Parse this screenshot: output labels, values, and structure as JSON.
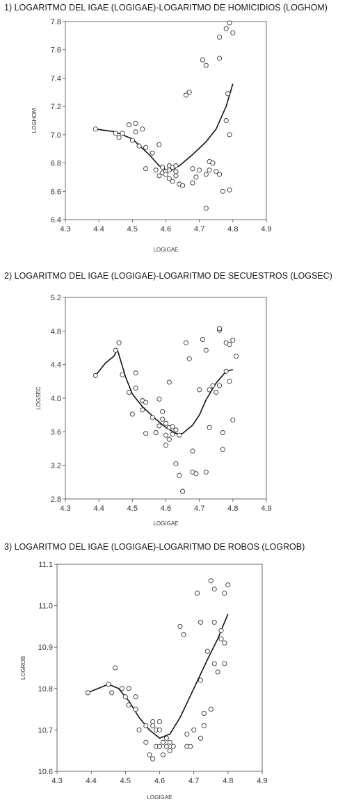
{
  "chart_data": [
    {
      "type": "scatter",
      "title": "1) LOGARITMO DEL IGAE (LOGIGAE)-LOGARITMO DE HOMICIDIOS (LOGHOM)",
      "xlabel": "LOGIGAE",
      "ylabel": "LOGHOM",
      "xlim": [
        4.3,
        4.9
      ],
      "ylim": [
        6.4,
        7.8
      ],
      "xticks": [
        "4.3",
        "4.4",
        "4.5",
        "4.6",
        "4.7",
        "4.8",
        "4.9"
      ],
      "yticks": [
        "6.4",
        "6.6",
        "6.8",
        "7.0",
        "7.2",
        "7.4",
        "7.6",
        "7.8"
      ],
      "grid": false,
      "points": [
        [
          4.39,
          7.04
        ],
        [
          4.45,
          7.01
        ],
        [
          4.46,
          6.98
        ],
        [
          4.47,
          7.01
        ],
        [
          4.49,
          7.07
        ],
        [
          4.5,
          6.96
        ],
        [
          4.51,
          7.08
        ],
        [
          4.51,
          7.02
        ],
        [
          4.52,
          6.92
        ],
        [
          4.53,
          7.04
        ],
        [
          4.54,
          6.91
        ],
        [
          4.54,
          6.76
        ],
        [
          4.56,
          6.87
        ],
        [
          4.57,
          6.75
        ],
        [
          4.58,
          6.93
        ],
        [
          4.58,
          6.71
        ],
        [
          4.59,
          6.77
        ],
        [
          4.59,
          6.73
        ],
        [
          4.6,
          6.74
        ],
        [
          4.6,
          6.72
        ],
        [
          4.61,
          6.78
        ],
        [
          4.61,
          6.75
        ],
        [
          4.61,
          6.69
        ],
        [
          4.62,
          6.77
        ],
        [
          4.62,
          6.67
        ],
        [
          4.63,
          6.78
        ],
        [
          4.63,
          6.71
        ],
        [
          4.63,
          6.74
        ],
        [
          4.64,
          6.65
        ],
        [
          4.65,
          6.64
        ],
        [
          4.66,
          7.28
        ],
        [
          4.67,
          7.3
        ],
        [
          4.68,
          6.76
        ],
        [
          4.68,
          6.66
        ],
        [
          4.69,
          6.7
        ],
        [
          4.7,
          6.75
        ],
        [
          4.71,
          7.53
        ],
        [
          4.72,
          7.49
        ],
        [
          4.72,
          6.72
        ],
        [
          4.72,
          6.48
        ],
        [
          4.73,
          6.75
        ],
        [
          4.73,
          6.81
        ],
        [
          4.74,
          6.8
        ],
        [
          4.75,
          6.74
        ],
        [
          4.76,
          7.69
        ],
        [
          4.76,
          7.54
        ],
        [
          4.76,
          6.72
        ],
        [
          4.77,
          6.6
        ],
        [
          4.78,
          7.75
        ],
        [
          4.78,
          7.1
        ],
        [
          4.79,
          7.0
        ],
        [
          4.79,
          7.79
        ],
        [
          4.79,
          6.61
        ],
        [
          4.8,
          7.72
        ],
        [
          4.785,
          7.29
        ]
      ],
      "fit": [
        [
          4.39,
          7.04
        ],
        [
          4.45,
          7.02
        ],
        [
          4.5,
          6.97
        ],
        [
          4.55,
          6.86
        ],
        [
          4.58,
          6.78
        ],
        [
          4.61,
          6.74
        ],
        [
          4.64,
          6.78
        ],
        [
          4.68,
          6.86
        ],
        [
          4.72,
          6.95
        ],
        [
          4.75,
          7.04
        ],
        [
          4.78,
          7.2
        ],
        [
          4.8,
          7.36
        ]
      ]
    },
    {
      "type": "scatter",
      "title": "2) LOGARITMO DEL IGAE (LOGIGAE)-LOGARITMO DE SECUESTROS (LOGSEC)",
      "xlabel": "LOGIGAE",
      "ylabel": "LOGSEC",
      "xlim": [
        4.3,
        4.9
      ],
      "ylim": [
        2.8,
        5.2
      ],
      "xticks": [
        "4.3",
        "4.4",
        "4.5",
        "4.6",
        "4.7",
        "4.8",
        "4.9"
      ],
      "yticks": [
        "2.8",
        "3.2",
        "3.6",
        "4.0",
        "4.4",
        "4.8",
        "5.2"
      ],
      "grid": false,
      "points": [
        [
          4.39,
          4.27
        ],
        [
          4.45,
          4.57
        ],
        [
          4.46,
          4.66
        ],
        [
          4.47,
          4.28
        ],
        [
          4.49,
          4.07
        ],
        [
          4.5,
          3.81
        ],
        [
          4.51,
          4.3
        ],
        [
          4.51,
          4.12
        ],
        [
          4.53,
          3.86
        ],
        [
          4.53,
          3.97
        ],
        [
          4.54,
          3.95
        ],
        [
          4.54,
          3.58
        ],
        [
          4.56,
          3.77
        ],
        [
          4.57,
          3.59
        ],
        [
          4.58,
          3.99
        ],
        [
          4.58,
          3.67
        ],
        [
          4.59,
          3.84
        ],
        [
          4.59,
          3.75
        ],
        [
          4.6,
          3.7
        ],
        [
          4.6,
          3.56
        ],
        [
          4.6,
          3.44
        ],
        [
          4.61,
          4.19
        ],
        [
          4.61,
          3.65
        ],
        [
          4.61,
          3.51
        ],
        [
          4.62,
          3.66
        ],
        [
          4.62,
          3.57
        ],
        [
          4.63,
          3.62
        ],
        [
          4.63,
          3.22
        ],
        [
          4.64,
          3.56
        ],
        [
          4.64,
          3.08
        ],
        [
          4.65,
          2.89
        ],
        [
          4.66,
          4.66
        ],
        [
          4.67,
          4.47
        ],
        [
          4.68,
          3.37
        ],
        [
          4.68,
          3.12
        ],
        [
          4.69,
          3.1
        ],
        [
          4.7,
          4.1
        ],
        [
          4.71,
          4.7
        ],
        [
          4.72,
          4.57
        ],
        [
          4.72,
          3.12
        ],
        [
          4.73,
          3.65
        ],
        [
          4.73,
          4.1
        ],
        [
          4.74,
          4.15
        ],
        [
          4.75,
          4.07
        ],
        [
          4.76,
          4.81
        ],
        [
          4.76,
          4.83
        ],
        [
          4.76,
          4.15
        ],
        [
          4.77,
          3.59
        ],
        [
          4.77,
          3.39
        ],
        [
          4.78,
          4.66
        ],
        [
          4.79,
          4.64
        ],
        [
          4.79,
          4.2
        ],
        [
          4.8,
          4.69
        ],
        [
          4.8,
          3.74
        ],
        [
          4.81,
          4.5
        ],
        [
          4.78,
          4.32
        ]
      ],
      "fit": [
        [
          4.39,
          4.27
        ],
        [
          4.42,
          4.42
        ],
        [
          4.445,
          4.5
        ],
        [
          4.455,
          4.58
        ],
        [
          4.48,
          4.25
        ],
        [
          4.5,
          4.05
        ],
        [
          4.53,
          3.9
        ],
        [
          4.57,
          3.75
        ],
        [
          4.6,
          3.65
        ],
        [
          4.63,
          3.58
        ],
        [
          4.65,
          3.58
        ],
        [
          4.68,
          3.68
        ],
        [
          4.7,
          3.8
        ],
        [
          4.72,
          3.98
        ],
        [
          4.75,
          4.18
        ],
        [
          4.78,
          4.32
        ],
        [
          4.8,
          4.34
        ]
      ]
    },
    {
      "type": "scatter",
      "title": "3) LOGARITMO DEL IGAE (LOGIGAE)-LOGARITMO DE ROBOS (LOGROB)",
      "xlabel": "LOGIGAE",
      "ylabel": "LOGROB",
      "xlim": [
        4.3,
        4.9
      ],
      "ylim": [
        10.6,
        11.1
      ],
      "xticks": [
        "4.3",
        "4.4",
        "4.5",
        "4.6",
        "4.7",
        "4.8",
        "4.9"
      ],
      "yticks": [
        "10.6",
        "10.7",
        "10.8",
        "10.9",
        "11.0",
        "11.1"
      ],
      "grid": false,
      "points": [
        [
          4.39,
          10.79
        ],
        [
          4.45,
          10.81
        ],
        [
          4.46,
          10.79
        ],
        [
          4.47,
          10.85
        ],
        [
          4.49,
          10.8
        ],
        [
          4.5,
          10.78
        ],
        [
          4.51,
          10.8
        ],
        [
          4.51,
          10.76
        ],
        [
          4.53,
          10.78
        ],
        [
          4.53,
          10.75
        ],
        [
          4.54,
          10.7
        ],
        [
          4.56,
          10.71
        ],
        [
          4.56,
          10.67
        ],
        [
          4.57,
          10.64
        ],
        [
          4.58,
          10.72
        ],
        [
          4.58,
          10.71
        ],
        [
          4.58,
          10.63
        ],
        [
          4.59,
          10.7
        ],
        [
          4.59,
          10.66
        ],
        [
          4.6,
          10.72
        ],
        [
          4.6,
          10.7
        ],
        [
          4.6,
          10.66
        ],
        [
          4.61,
          10.67
        ],
        [
          4.61,
          10.64
        ],
        [
          4.62,
          10.68
        ],
        [
          4.62,
          10.66
        ],
        [
          4.63,
          10.67
        ],
        [
          4.63,
          10.65
        ],
        [
          4.64,
          10.66
        ],
        [
          4.66,
          10.95
        ],
        [
          4.67,
          10.93
        ],
        [
          4.68,
          10.69
        ],
        [
          4.68,
          10.66
        ],
        [
          4.69,
          10.66
        ],
        [
          4.7,
          10.7
        ],
        [
          4.71,
          11.03
        ],
        [
          4.72,
          10.96
        ],
        [
          4.72,
          10.68
        ],
        [
          4.72,
          10.82
        ],
        [
          4.73,
          10.74
        ],
        [
          4.73,
          10.71
        ],
        [
          4.74,
          10.89
        ],
        [
          4.75,
          10.75
        ],
        [
          4.75,
          11.06
        ],
        [
          4.76,
          11.04
        ],
        [
          4.76,
          10.96
        ],
        [
          4.76,
          10.86
        ],
        [
          4.77,
          10.84
        ],
        [
          4.78,
          10.94
        ],
        [
          4.78,
          10.92
        ],
        [
          4.79,
          11.03
        ],
        [
          4.79,
          10.91
        ],
        [
          4.79,
          10.86
        ],
        [
          4.8,
          11.05
        ]
      ],
      "fit": [
        [
          4.39,
          10.79
        ],
        [
          4.42,
          10.8
        ],
        [
          4.45,
          10.81
        ],
        [
          4.48,
          10.8
        ],
        [
          4.51,
          10.77
        ],
        [
          4.54,
          10.73
        ],
        [
          4.57,
          10.7
        ],
        [
          4.6,
          10.68
        ],
        [
          4.63,
          10.69
        ],
        [
          4.66,
          10.73
        ],
        [
          4.7,
          10.8
        ],
        [
          4.74,
          10.87
        ],
        [
          4.77,
          10.92
        ],
        [
          4.8,
          10.98
        ]
      ]
    }
  ]
}
